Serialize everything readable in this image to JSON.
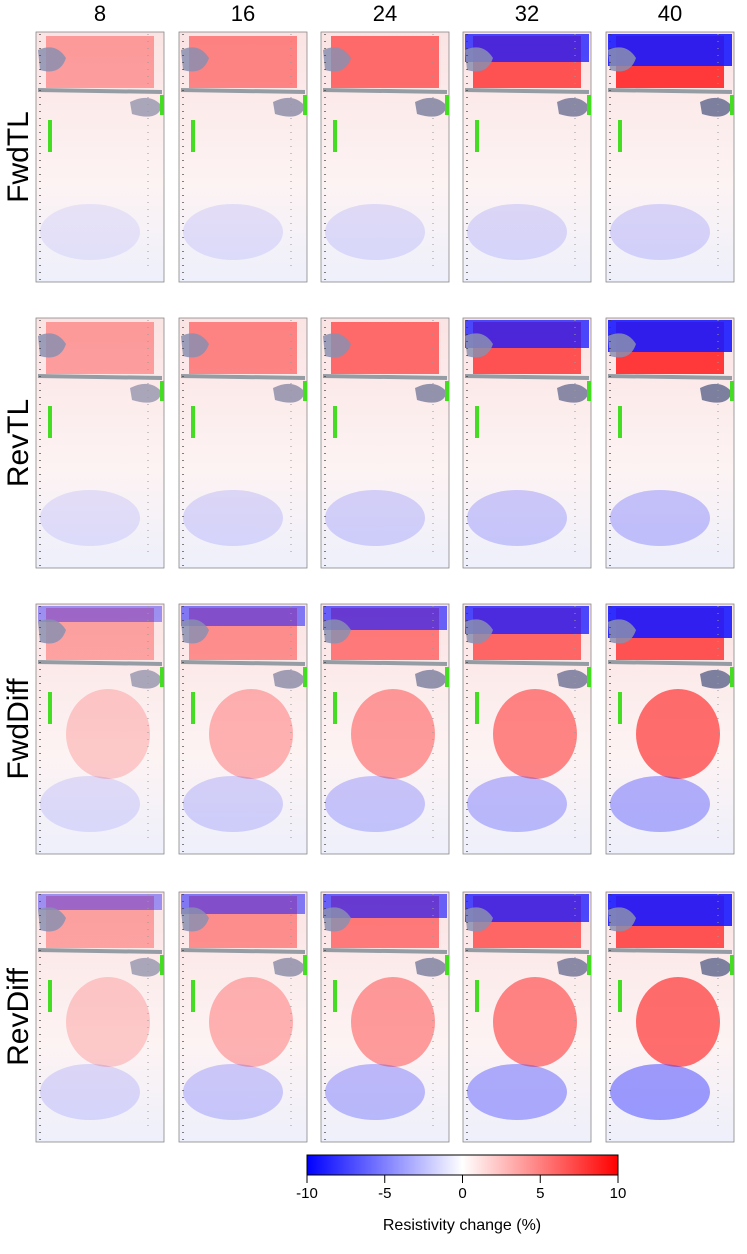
{
  "columns": [
    "8",
    "16",
    "24",
    "32",
    "40"
  ],
  "rows": [
    "FwdTL",
    "RevTL",
    "FwdDiff",
    "RevDiff"
  ],
  "colorbar": {
    "label": "Resistivity change (%)",
    "lim": [
      -10,
      10
    ],
    "ticks": [
      -10,
      -5,
      0,
      5,
      10
    ]
  }
}
